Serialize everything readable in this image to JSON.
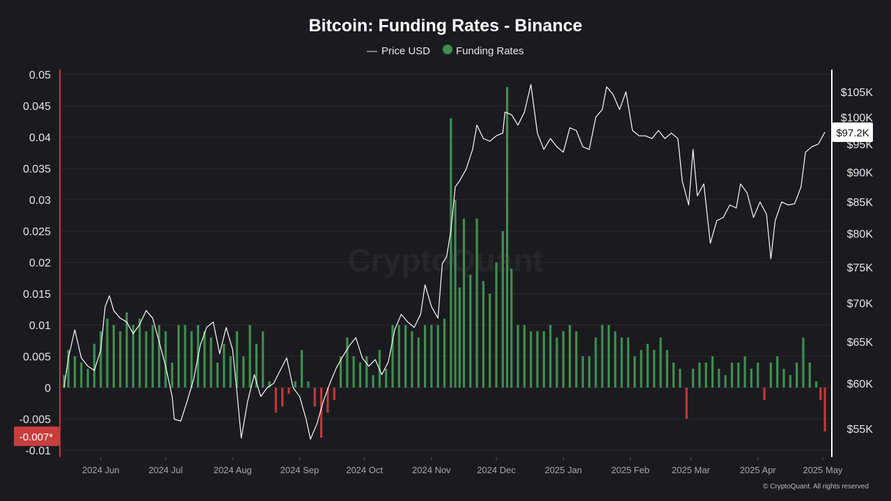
{
  "colors": {
    "background": "#1b1b1f",
    "price_line": "#ffffff",
    "funding_positive": "#3e8f4f",
    "funding_negative": "#c0393b",
    "left_axis_line": "#c0393b",
    "right_axis_line": "#ffffff",
    "grid": "#2a2a2f"
  },
  "legend": {
    "price_symbol": "—",
    "price_label": "Price USD",
    "funding_label": "Funding Rates"
  },
  "badges": {
    "left_value_label": "-0.007*",
    "right_value_label": "$97.2K"
  },
  "watermark": "CryptoQuant",
  "copyright": "© CryptoQuant. All rights reserved",
  "chart_data": {
    "type": "bar",
    "title": "Bitcoin: Funding Rates - Binance",
    "grid": true,
    "legend_placement": "top-center",
    "x_ticks": [
      "2024 Jun",
      "2024 Jul",
      "2024 Aug",
      "2024 Sep",
      "2024 Oct",
      "2024 Nov",
      "2024 Dec",
      "2025 Jan",
      "2025 Feb",
      "2025 Mar",
      "2025 Apr",
      "2025 May"
    ],
    "y_left": {
      "ticks": [
        "0.05",
        "0.045",
        "0.04",
        "0.035",
        "0.03",
        "0.025",
        "0.02",
        "0.015",
        "0.01",
        "0.005",
        "0",
        "-0.005",
        "-0.01"
      ],
      "range": [
        -0.011,
        0.0505
      ]
    },
    "y_right": {
      "ticks": [
        "$105K",
        "$100K",
        "$95K",
        "$90K",
        "$85K",
        "$80K",
        "$75K",
        "$70K",
        "$65K",
        "$60K",
        "$55K"
      ],
      "range": [
        52000,
        109000
      ],
      "scale": "log"
    },
    "series": [
      {
        "name": "Funding Rates",
        "type": "bar",
        "points": [
          [
            "05-15",
            0.002
          ],
          [
            "05-17",
            0.006
          ],
          [
            "05-20",
            0.005
          ],
          [
            "05-23",
            0.004
          ],
          [
            "05-26",
            0.003
          ],
          [
            "05-29",
            0.007
          ],
          [
            "06-01",
            0.009
          ],
          [
            "06-04",
            0.011
          ],
          [
            "06-07",
            0.01
          ],
          [
            "06-10",
            0.009
          ],
          [
            "06-13",
            0.012
          ],
          [
            "06-16",
            0.01
          ],
          [
            "06-19",
            0.011
          ],
          [
            "06-22",
            0.009
          ],
          [
            "06-25",
            0.01
          ],
          [
            "06-28",
            0.01
          ],
          [
            "07-01",
            0.009
          ],
          [
            "07-04",
            0.004
          ],
          [
            "07-07",
            0.01
          ],
          [
            "07-10",
            0.01
          ],
          [
            "07-13",
            0.009
          ],
          [
            "07-16",
            0.01
          ],
          [
            "07-19",
            0.009
          ],
          [
            "07-22",
            0.008
          ],
          [
            "07-25",
            0.004
          ],
          [
            "07-28",
            0.007
          ],
          [
            "07-31",
            0.005
          ],
          [
            "08-03",
            0.009
          ],
          [
            "08-06",
            0.005
          ],
          [
            "08-09",
            0.01
          ],
          [
            "08-12",
            0.007
          ],
          [
            "08-15",
            0.009
          ],
          [
            "08-18",
            0.001
          ],
          [
            "08-21",
            -0.004
          ],
          [
            "08-24",
            -0.003
          ],
          [
            "08-27",
            -0.001
          ],
          [
            "08-30",
            0.001
          ],
          [
            "09-02",
            0.006
          ],
          [
            "09-05",
            0.001
          ],
          [
            "09-08",
            -0.003
          ],
          [
            "09-11",
            -0.008
          ],
          [
            "09-14",
            -0.004
          ],
          [
            "09-17",
            -0.002
          ],
          [
            "09-20",
            0.005
          ],
          [
            "09-23",
            0.008
          ],
          [
            "09-26",
            0.005
          ],
          [
            "09-29",
            0.004
          ],
          [
            "10-02",
            0.005
          ],
          [
            "10-05",
            0.002
          ],
          [
            "10-08",
            0.006
          ],
          [
            "10-11",
            0.003
          ],
          [
            "10-14",
            0.01
          ],
          [
            "10-17",
            0.01
          ],
          [
            "10-20",
            0.01
          ],
          [
            "10-23",
            0.009
          ],
          [
            "10-26",
            0.008
          ],
          [
            "10-29",
            0.01
          ],
          [
            "11-01",
            0.01
          ],
          [
            "11-04",
            0.01
          ],
          [
            "11-07",
            0.011
          ],
          [
            "11-10",
            0.043
          ],
          [
            "11-12",
            0.03
          ],
          [
            "11-14",
            0.016
          ],
          [
            "11-16",
            0.027
          ],
          [
            "11-19",
            0.018
          ],
          [
            "11-22",
            0.027
          ],
          [
            "11-25",
            0.017
          ],
          [
            "11-28",
            0.015
          ],
          [
            "12-01",
            0.02
          ],
          [
            "12-04",
            0.025
          ],
          [
            "12-06",
            0.048
          ],
          [
            "12-08",
            0.019
          ],
          [
            "12-11",
            0.01
          ],
          [
            "12-14",
            0.01
          ],
          [
            "12-17",
            0.009
          ],
          [
            "12-20",
            0.009
          ],
          [
            "12-23",
            0.009
          ],
          [
            "12-26",
            0.01
          ],
          [
            "12-29",
            0.008
          ],
          [
            "01-01",
            0.009
          ],
          [
            "01-04",
            0.01
          ],
          [
            "01-07",
            0.009
          ],
          [
            "01-10",
            0.005
          ],
          [
            "01-13",
            0.005
          ],
          [
            "01-16",
            0.008
          ],
          [
            "01-19",
            0.01
          ],
          [
            "01-22",
            0.01
          ],
          [
            "01-25",
            0.009
          ],
          [
            "01-28",
            0.008
          ],
          [
            "01-31",
            0.008
          ],
          [
            "02-03",
            0.005
          ],
          [
            "02-06",
            0.006
          ],
          [
            "02-09",
            0.007
          ],
          [
            "02-12",
            0.006
          ],
          [
            "02-15",
            0.008
          ],
          [
            "02-18",
            0.006
          ],
          [
            "02-21",
            0.004
          ],
          [
            "02-24",
            0.003
          ],
          [
            "02-27",
            -0.005
          ],
          [
            "03-02",
            0.003
          ],
          [
            "03-05",
            0.004
          ],
          [
            "03-08",
            0.004
          ],
          [
            "03-11",
            0.005
          ],
          [
            "03-14",
            0.003
          ],
          [
            "03-17",
            0.002
          ],
          [
            "03-20",
            0.004
          ],
          [
            "03-23",
            0.004
          ],
          [
            "03-26",
            0.005
          ],
          [
            "03-29",
            0.003
          ],
          [
            "04-01",
            0.004
          ],
          [
            "04-04",
            -0.002
          ],
          [
            "04-07",
            0.004
          ],
          [
            "04-10",
            0.005
          ],
          [
            "04-13",
            0.003
          ],
          [
            "04-16",
            0.002
          ],
          [
            "04-19",
            0.004
          ],
          [
            "04-22",
            0.008
          ],
          [
            "04-25",
            0.004
          ],
          [
            "04-28",
            0.001
          ],
          [
            "04-30",
            -0.002
          ],
          [
            "05-02",
            -0.007
          ]
        ]
      },
      {
        "name": "Price USD",
        "type": "line",
        "points": [
          [
            "05-15",
            59500
          ],
          [
            "05-17",
            63000
          ],
          [
            "05-20",
            66500
          ],
          [
            "05-23",
            63000
          ],
          [
            "05-26",
            62000
          ],
          [
            "05-29",
            61500
          ],
          [
            "06-01",
            64000
          ],
          [
            "06-03",
            69500
          ],
          [
            "06-05",
            71000
          ],
          [
            "06-07",
            69000
          ],
          [
            "06-10",
            68000
          ],
          [
            "06-13",
            67500
          ],
          [
            "06-16",
            66000
          ],
          [
            "06-19",
            67200
          ],
          [
            "06-22",
            69000
          ],
          [
            "06-25",
            68000
          ],
          [
            "06-28",
            65000
          ],
          [
            "07-01",
            62000
          ],
          [
            "07-04",
            58500
          ],
          [
            "07-05",
            56000
          ],
          [
            "07-08",
            55800
          ],
          [
            "07-11",
            58000
          ],
          [
            "07-14",
            60500
          ],
          [
            "07-17",
            64500
          ],
          [
            "07-20",
            66800
          ],
          [
            "07-23",
            67500
          ],
          [
            "07-26",
            63500
          ],
          [
            "07-29",
            66800
          ],
          [
            "08-01",
            64000
          ],
          [
            "08-03",
            59000
          ],
          [
            "08-05",
            54000
          ],
          [
            "08-08",
            58000
          ],
          [
            "08-11",
            61000
          ],
          [
            "08-14",
            58500
          ],
          [
            "08-17",
            59500
          ],
          [
            "08-20",
            60000
          ],
          [
            "08-23",
            61500
          ],
          [
            "08-26",
            63000
          ],
          [
            "08-29",
            59500
          ],
          [
            "09-01",
            58500
          ],
          [
            "09-04",
            56000
          ],
          [
            "09-06",
            53900
          ],
          [
            "09-09",
            55500
          ],
          [
            "09-12",
            58000
          ],
          [
            "09-15",
            60000
          ],
          [
            "09-18",
            61800
          ],
          [
            "09-21",
            63200
          ],
          [
            "09-24",
            64500
          ],
          [
            "09-27",
            65500
          ],
          [
            "09-30",
            63000
          ],
          [
            "10-03",
            62000
          ],
          [
            "10-06",
            62800
          ],
          [
            "10-09",
            61000
          ],
          [
            "10-12",
            62500
          ],
          [
            "10-15",
            66500
          ],
          [
            "10-18",
            68500
          ],
          [
            "10-21",
            67500
          ],
          [
            "10-24",
            66800
          ],
          [
            "10-27",
            68500
          ],
          [
            "10-29",
            72500
          ],
          [
            "11-01",
            69500
          ],
          [
            "11-04",
            68000
          ],
          [
            "11-06",
            75500
          ],
          [
            "11-08",
            76500
          ],
          [
            "11-10",
            80500
          ],
          [
            "11-12",
            87500
          ],
          [
            "11-14",
            88500
          ],
          [
            "11-17",
            90500
          ],
          [
            "11-20",
            94000
          ],
          [
            "11-22",
            98500
          ],
          [
            "11-25",
            96000
          ],
          [
            "11-28",
            95500
          ],
          [
            "12-01",
            96500
          ],
          [
            "12-04",
            97000
          ],
          [
            "12-05",
            101000
          ],
          [
            "12-08",
            100500
          ],
          [
            "12-11",
            98500
          ],
          [
            "12-14",
            101000
          ],
          [
            "12-17",
            106500
          ],
          [
            "12-20",
            97000
          ],
          [
            "12-23",
            94000
          ],
          [
            "12-26",
            96000
          ],
          [
            "12-29",
            94500
          ],
          [
            "01-01",
            93500
          ],
          [
            "01-04",
            98000
          ],
          [
            "01-07",
            97500
          ],
          [
            "01-10",
            94500
          ],
          [
            "01-13",
            94000
          ],
          [
            "01-16",
            100000
          ],
          [
            "01-19",
            101500
          ],
          [
            "01-21",
            106000
          ],
          [
            "01-24",
            104500
          ],
          [
            "01-27",
            101500
          ],
          [
            "01-30",
            105000
          ],
          [
            "02-02",
            97500
          ],
          [
            "02-05",
            96500
          ],
          [
            "02-08",
            96500
          ],
          [
            "02-11",
            96000
          ],
          [
            "02-14",
            97500
          ],
          [
            "02-17",
            96000
          ],
          [
            "02-20",
            97000
          ],
          [
            "02-23",
            96000
          ],
          [
            "02-25",
            88500
          ],
          [
            "02-28",
            84500
          ],
          [
            "03-02",
            94000
          ],
          [
            "03-04",
            86000
          ],
          [
            "03-07",
            88000
          ],
          [
            "03-10",
            78500
          ],
          [
            "03-13",
            82000
          ],
          [
            "03-16",
            82500
          ],
          [
            "03-19",
            84500
          ],
          [
            "03-22",
            84000
          ],
          [
            "03-24",
            88000
          ],
          [
            "03-27",
            86500
          ],
          [
            "03-30",
            82500
          ],
          [
            "04-02",
            85000
          ],
          [
            "04-05",
            83000
          ],
          [
            "04-07",
            76200
          ],
          [
            "04-09",
            82000
          ],
          [
            "04-12",
            85000
          ],
          [
            "04-15",
            84500
          ],
          [
            "04-18",
            84700
          ],
          [
            "04-21",
            87500
          ],
          [
            "04-23",
            93500
          ],
          [
            "04-26",
            94500
          ],
          [
            "04-29",
            95000
          ],
          [
            "05-02",
            97200
          ]
        ]
      }
    ]
  }
}
